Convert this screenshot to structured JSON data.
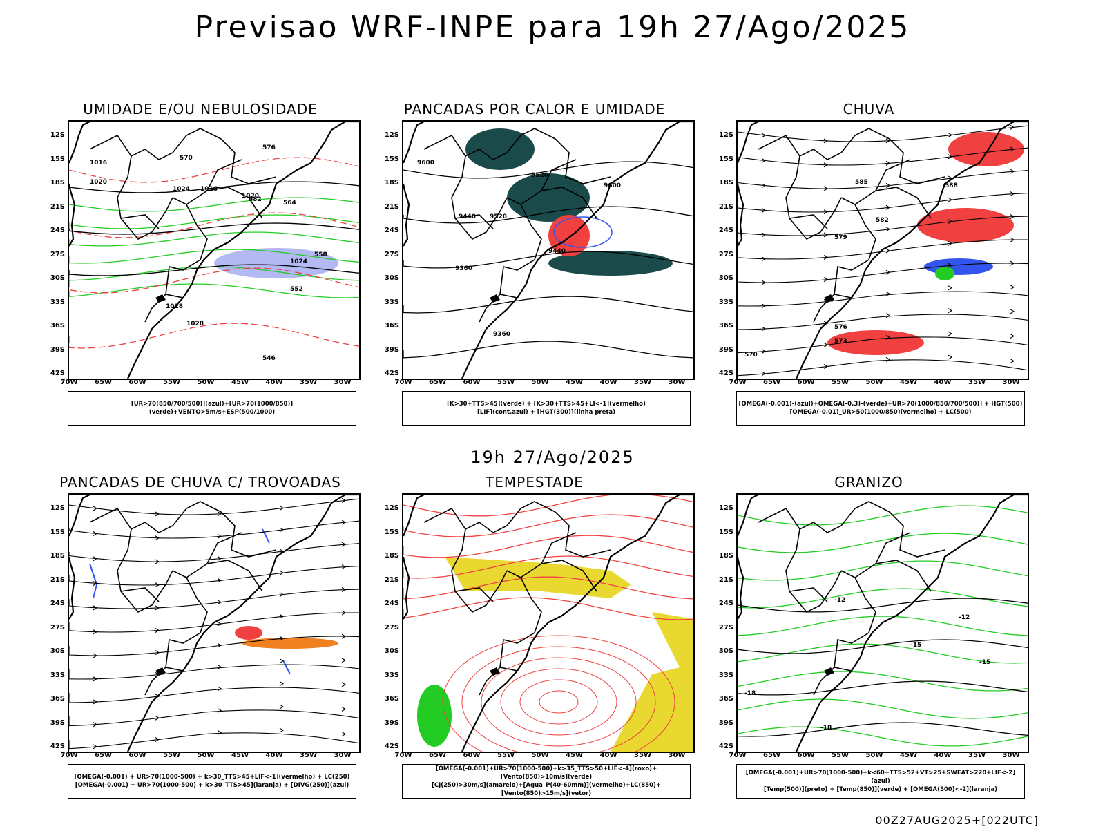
{
  "title": "Previsao WRF-INPE  para 19h 27/Ago/2025",
  "mid_title": "19h 27/Ago/2025",
  "footer": "00Z27AUG2025+[022UTC]",
  "lat_ticks": [
    "12S",
    "15S",
    "18S",
    "21S",
    "24S",
    "27S",
    "30S",
    "33S",
    "36S",
    "39S",
    "42S"
  ],
  "lon_ticks": [
    "70W",
    "65W",
    "60W",
    "55W",
    "50W",
    "45W",
    "40W",
    "35W",
    "30W"
  ],
  "panels": [
    {
      "title": "UMIDADE E/OU NEBULOSIDADE",
      "legend": [
        "[UR>70(850/700/500)](azul)+[UR>70(1000/850)](verde)+VENTO>5m/s+ESP(500/1000)"
      ],
      "contour_labels": [
        "1016",
        "1020",
        "1024",
        "1028",
        "1016",
        "1020",
        "1024",
        "1028",
        "570",
        "576",
        "582",
        "564",
        "558",
        "552",
        "546"
      ]
    },
    {
      "title": "PANCADAS POR CALOR E UMIDADE",
      "legend": [
        "[K>30+TTS>45](verde) + [K>30+TTS>45+LI<-1](vermelho)",
        "[LIF](cont.azul) + [HGT(300)](linha preta)"
      ],
      "contour_labels": [
        "9600",
        "9520",
        "9440",
        "9360",
        "9600",
        "9520",
        "9440",
        "9360"
      ]
    },
    {
      "title": "CHUVA",
      "legend": [
        "[OMEGA(-0.001)-(azul)+OMEGA(-0.3)-(verde)+UR>70(1000/850/700/500)] + HGT(500)",
        "[OMEGA(-0.01)_UR>50(1000/850)(vermelho) + LC(500)"
      ],
      "contour_labels": [
        "588",
        "585",
        "582",
        "579",
        "576",
        "573",
        "570"
      ]
    },
    {
      "title": "PANCADAS DE CHUVA C/ TROVOADAS",
      "legend": [
        "[OMEGA(-0.001) + UR>70(1000-500) + k>30_TTS>45+LIF<-1](vermelho) + LC(250)",
        "[OMEGA(-0.001) + UR>70(1000-500) + k>30_TTS>45](laranja) + [DIVG(250)](azul)"
      ],
      "contour_labels": []
    },
    {
      "title": "TEMPESTADE",
      "legend": [
        "[OMEGA(-0.001)+UR>70(1000-500)+k>35_TTS>50+LIF<-4](roxo)+[Vento(850)>10m/s](verde)",
        "[CJ(250)>30m/s](amarelo)+[Agua_P(40-60mm)](vermelho)+LC(850)+[Vento(850)>15m/s](vetor)"
      ],
      "contour_labels": []
    },
    {
      "title": "GRANIZO",
      "legend": [
        "[OMEGA(-0.001)+UR>70(1000-500)+k<60+TTS>52+VT>25+SWEAT>220+LIF<-2](azul)",
        "[Temp(500)](preto) + [Temp(850)](verde) + [OMEGA(500)<-2](laranja)"
      ],
      "contour_labels": [
        "-12",
        "-15",
        "-18",
        "-12",
        "-15",
        "-18"
      ]
    }
  ],
  "colors": {
    "red": "#f04040",
    "green": "#22cc22",
    "blue": "#3355ee",
    "teal": "#1a4a4a",
    "yellow": "#e8d830",
    "orange": "#f08020",
    "lavender": "#a0a8f0"
  }
}
